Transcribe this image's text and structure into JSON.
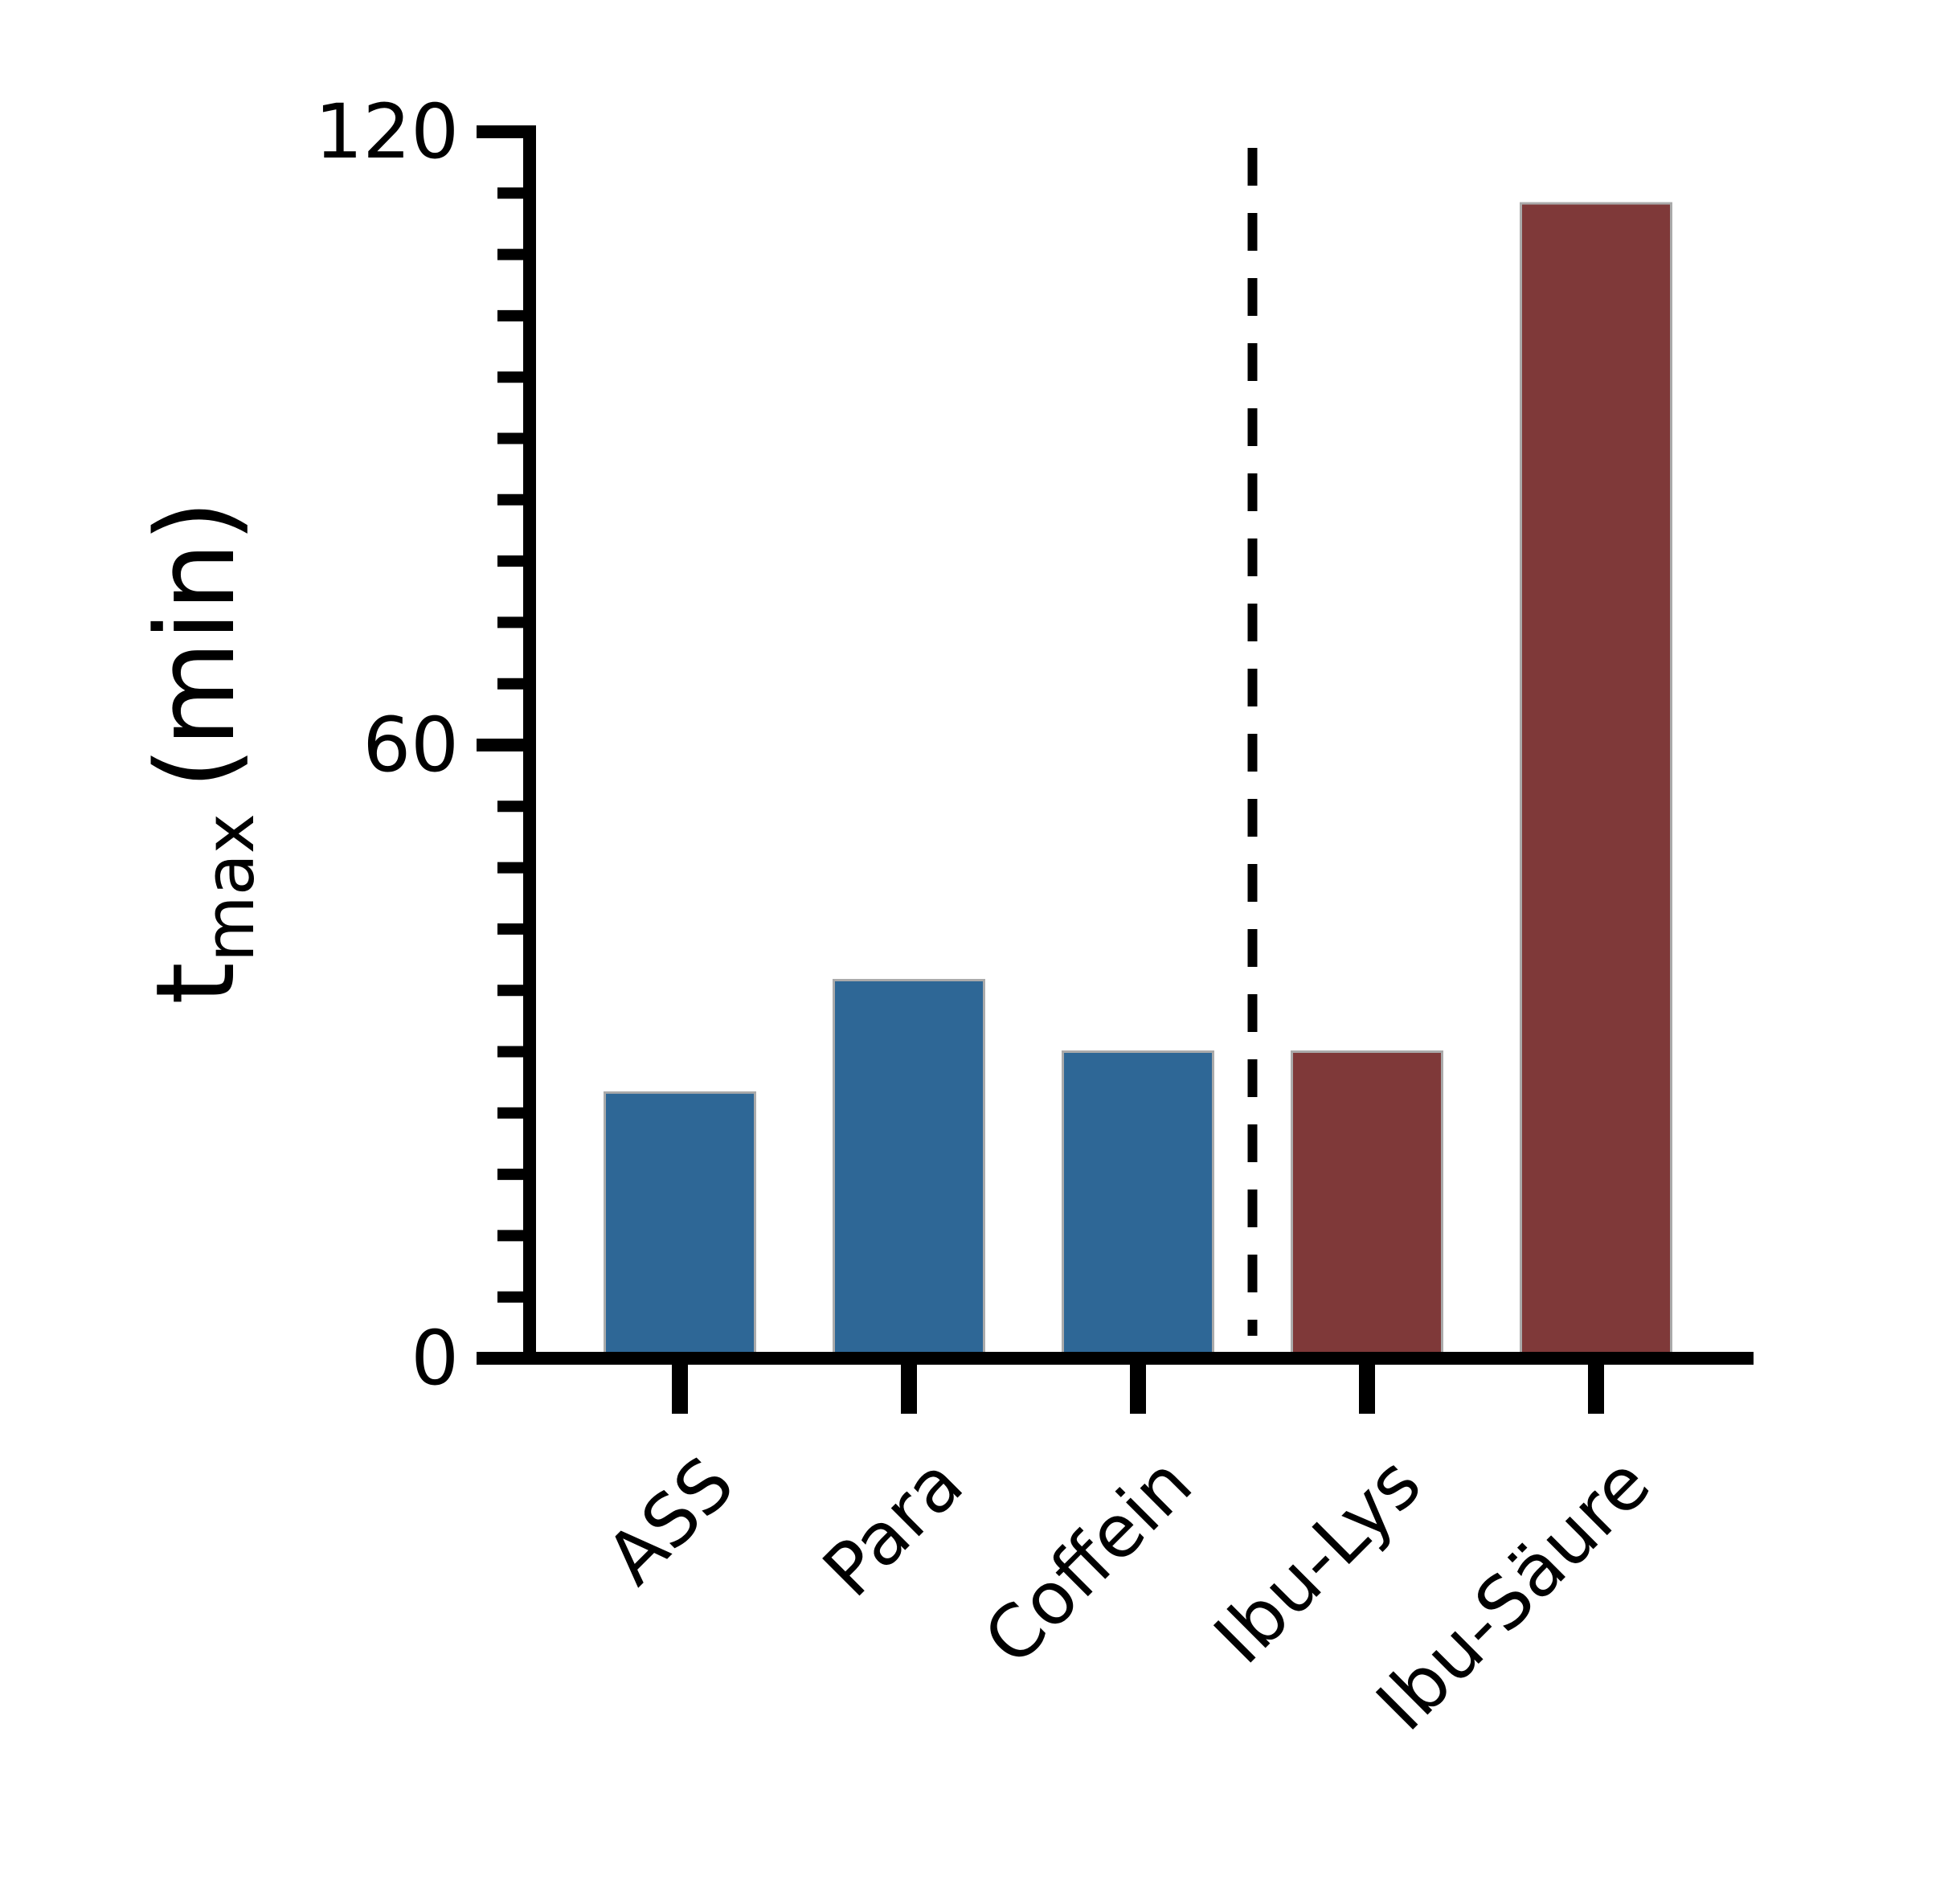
{
  "chart_data": {
    "type": "bar",
    "ylabel": {
      "main": "t",
      "sub": "max",
      "unit": "(min)"
    },
    "categories": [
      "ASS",
      "Para",
      "Coffein",
      "Ibu-Lys",
      "Ibu-Säure"
    ],
    "values": [
      26,
      37,
      30,
      30,
      113
    ],
    "colors": [
      "#2e6796",
      "#2e6796",
      "#2e6796",
      "#7f3939",
      "#7f3939"
    ],
    "ylim": [
      0,
      120
    ],
    "yticks": [
      0,
      60,
      120
    ],
    "minor_yticks": [
      6,
      12,
      18,
      24,
      30,
      36,
      42,
      48,
      54,
      66,
      72,
      78,
      84,
      90,
      96,
      102,
      108,
      114
    ],
    "grid": false
  }
}
